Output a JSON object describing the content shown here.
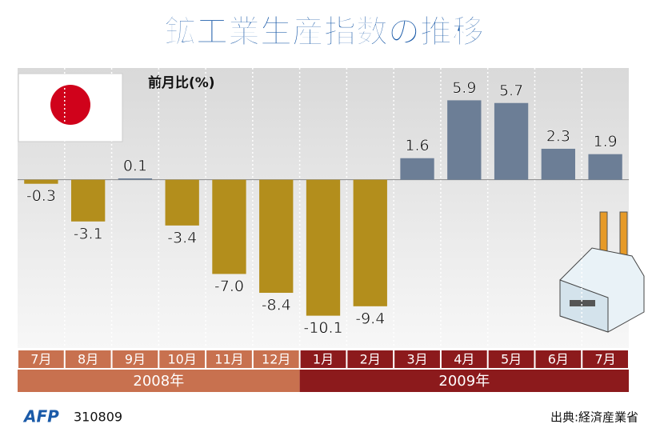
{
  "chart_data": {
    "type": "bar",
    "title": "鉱工業生産指数の推移",
    "y_label": "前月比(%)",
    "categories": [
      "7月",
      "8月",
      "9月",
      "10月",
      "11月",
      "12月",
      "1月",
      "2月",
      "3月",
      "4月",
      "5月",
      "6月",
      "7月"
    ],
    "values": [
      -0.3,
      -3.1,
      0.1,
      -3.4,
      -7.0,
      -8.4,
      -10.1,
      -9.4,
      1.6,
      5.9,
      5.7,
      2.3,
      1.9
    ],
    "value_labels": [
      "-0.3",
      "-3.1",
      "0.1",
      "-3.4",
      "-7.0",
      "-8.4",
      "-10.1",
      "-9.4",
      "1.6",
      "5.9",
      "5.7",
      "2.3",
      "1.9"
    ],
    "colors": {
      "negative": "#b38e1c",
      "positive": "#6c7e96"
    },
    "year_groups": [
      {
        "label": "2008年",
        "span": 6,
        "color": "#c8714f"
      },
      {
        "label": "2009年",
        "span": 7,
        "color": "#8c1a1c"
      }
    ],
    "ylim": [
      -12.5,
      8.3
    ],
    "source_code": "AFP",
    "date_code": "310809",
    "source": "出典:経済産業省"
  }
}
